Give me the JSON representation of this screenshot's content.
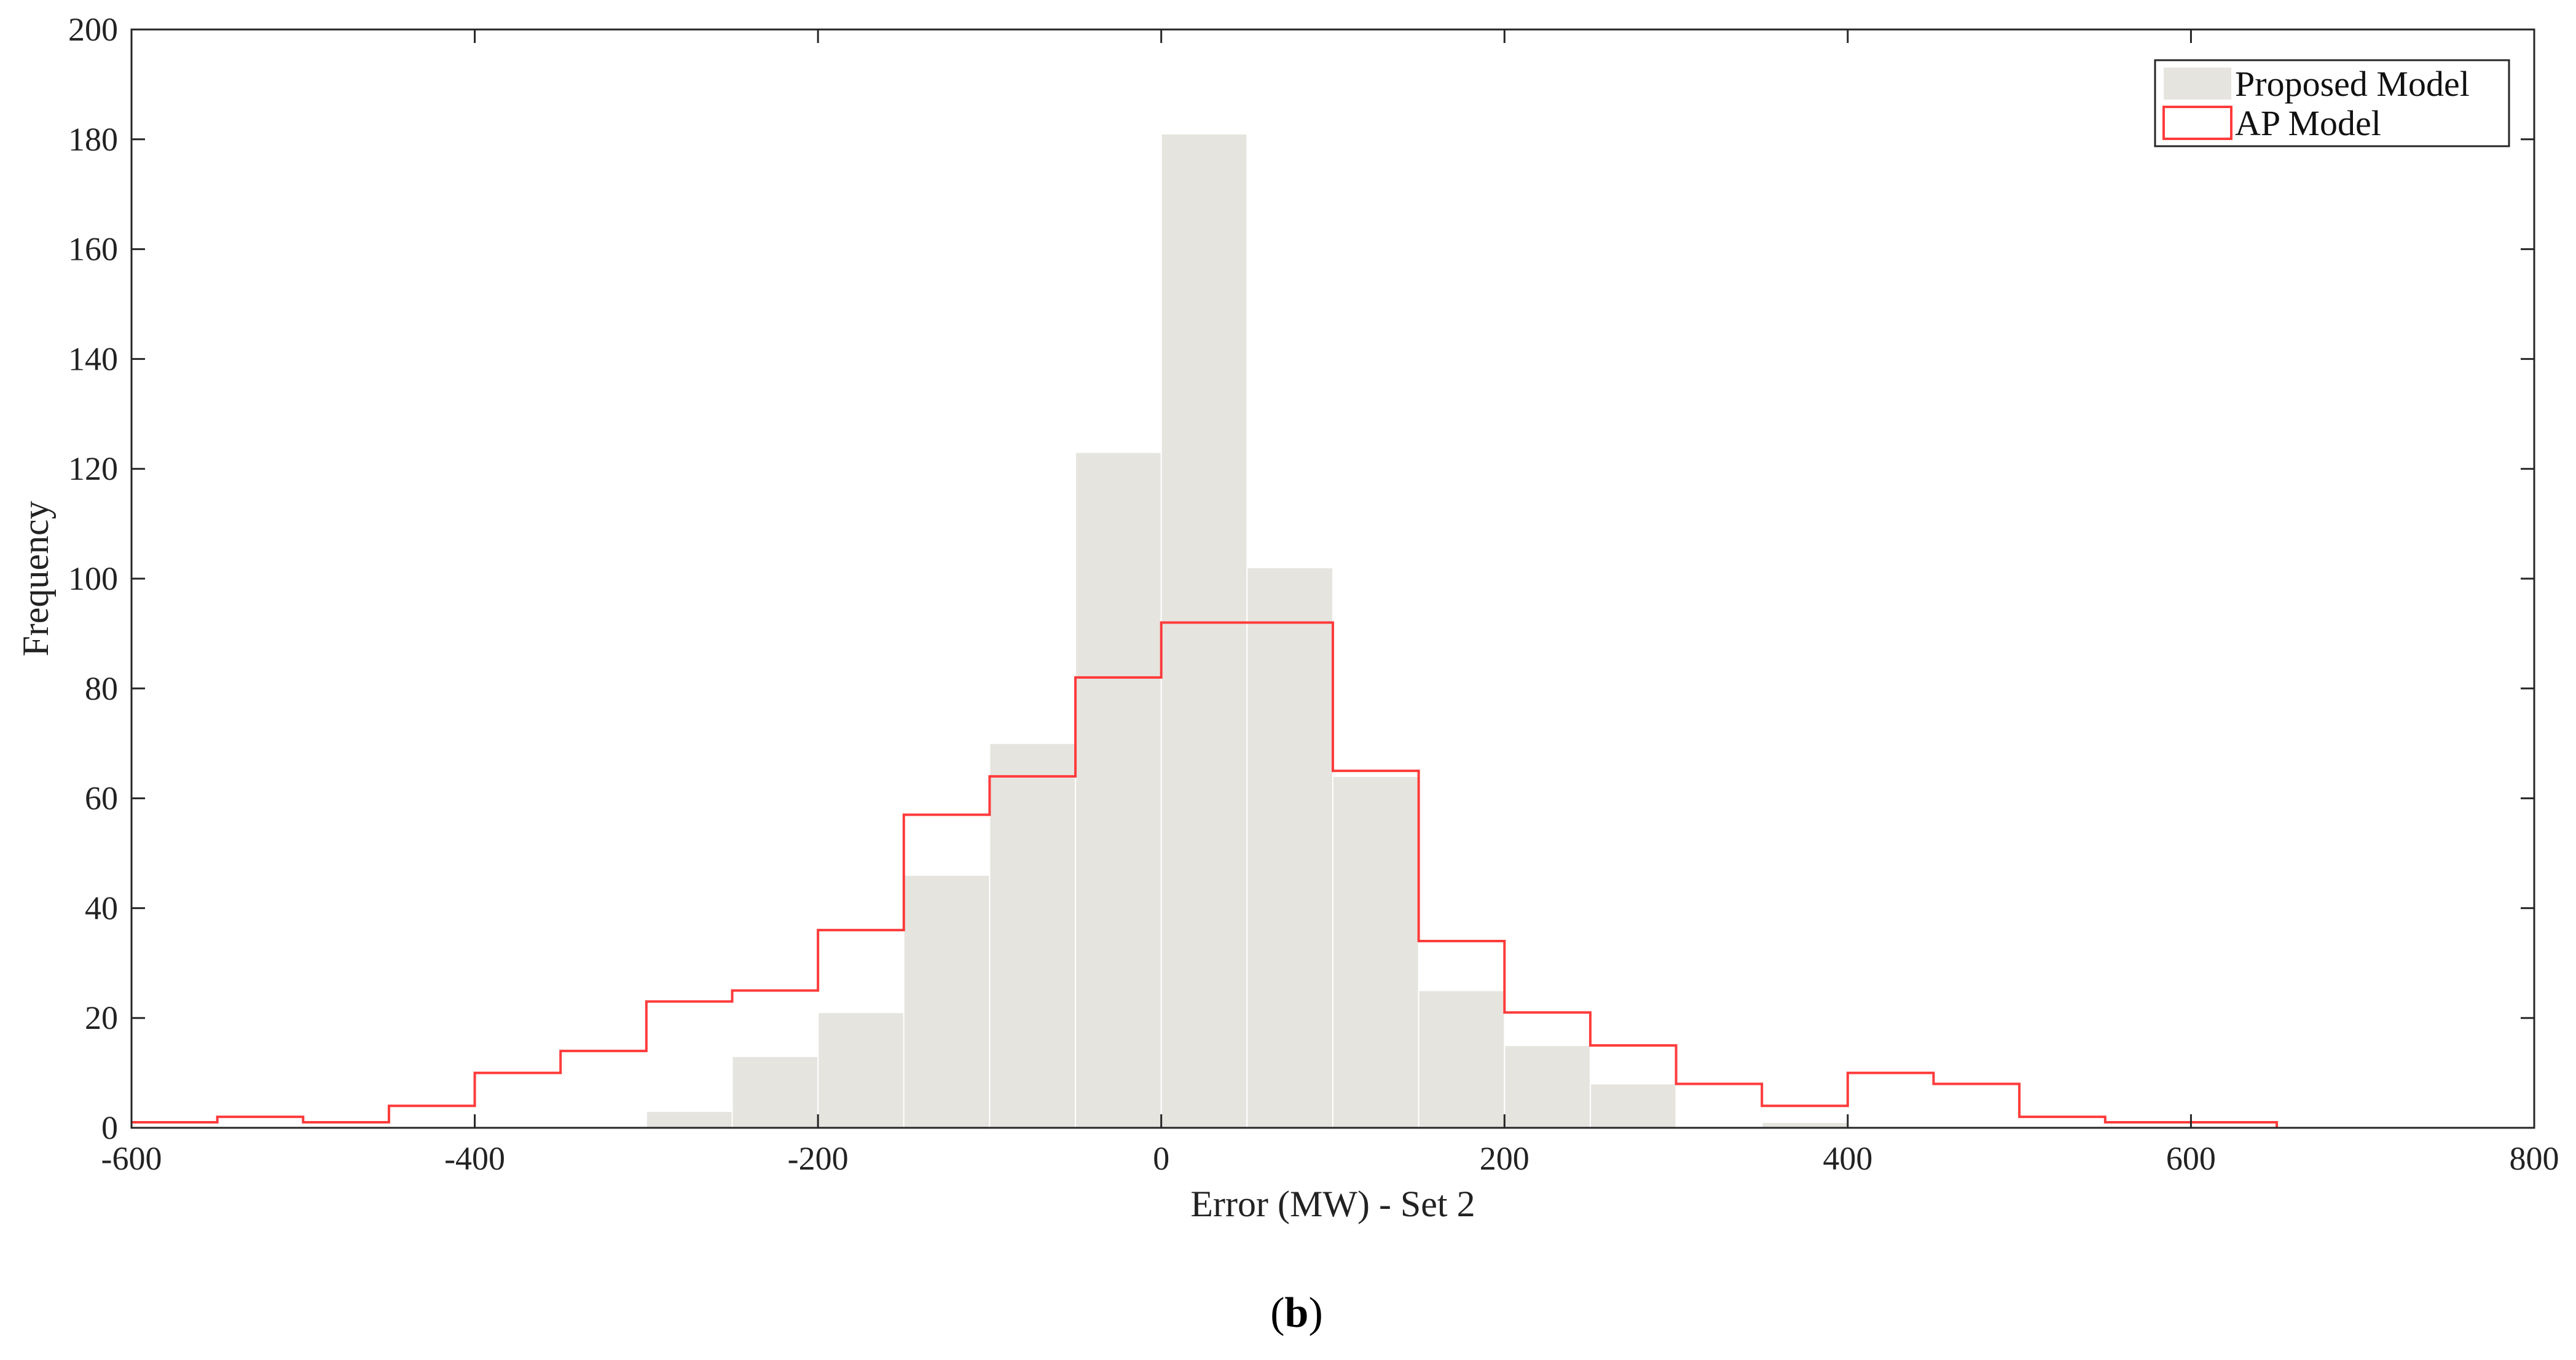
{
  "chart_data": {
    "type": "bar",
    "subtype": "histogram",
    "xlabel": "Error (MW) - Set 2",
    "ylabel": "Frequency",
    "xlim": [
      -600,
      800
    ],
    "ylim": [
      0,
      200
    ],
    "x_ticks": [
      -600,
      -400,
      -200,
      0,
      200,
      400,
      600,
      800
    ],
    "y_ticks": [
      0,
      20,
      40,
      60,
      80,
      100,
      120,
      140,
      160,
      180,
      200
    ],
    "x_tick_labels": [
      "-600",
      "-400",
      "-200",
      "0",
      "200",
      "400",
      "600",
      "800"
    ],
    "y_tick_labels": [
      "0",
      "20",
      "40",
      "60",
      "80",
      "100",
      "120",
      "140",
      "160",
      "180",
      "200"
    ],
    "bin_width": 50,
    "grid": false,
    "legend": {
      "placement": "top-right"
    },
    "series": [
      {
        "name": "Proposed Model",
        "style": "filled-bars",
        "color": "#e6e4df",
        "bin_edges": [
          -300,
          -250,
          -200,
          -150,
          -100,
          -50,
          0,
          50,
          100,
          150,
          200,
          250,
          300,
          350,
          400
        ],
        "values": [
          3,
          13,
          21,
          46,
          70,
          123,
          181,
          102,
          64,
          25,
          15,
          8,
          0,
          1
        ]
      },
      {
        "name": "AP Model",
        "style": "stairs",
        "color": "#ff3b3b",
        "bin_edges": [
          -600,
          -550,
          -500,
          -450,
          -400,
          -350,
          -300,
          -250,
          -200,
          -150,
          -100,
          -50,
          0,
          50,
          100,
          150,
          200,
          250,
          300,
          350,
          400,
          450,
          500,
          550,
          600,
          650
        ],
        "values": [
          1,
          2,
          1,
          4,
          10,
          14,
          23,
          25,
          36,
          57,
          64,
          82,
          92,
          92,
          65,
          34,
          21,
          15,
          8,
          4,
          10,
          8,
          2,
          1,
          1
        ]
      }
    ]
  },
  "panel_label": "b"
}
